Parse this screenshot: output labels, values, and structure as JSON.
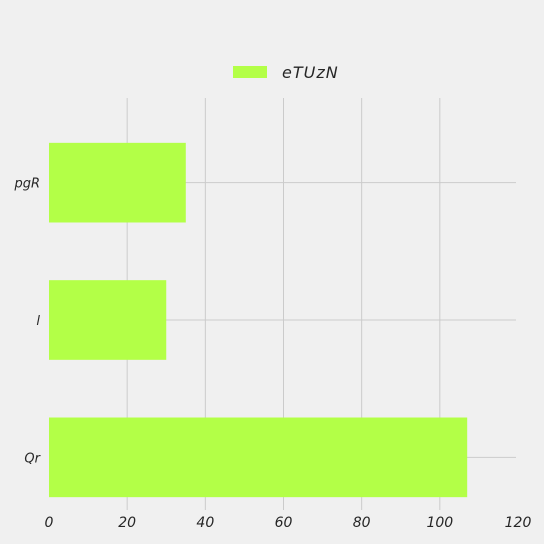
{
  "chart_data": {
    "type": "bar",
    "orientation": "horizontal",
    "categories": [
      "pgR",
      "l",
      "Qr"
    ],
    "series": [
      {
        "name": "eTUzN",
        "values": [
          35,
          30,
          107
        ]
      }
    ],
    "xlim": [
      0,
      120
    ],
    "xticks": [
      0,
      20,
      40,
      60,
      80,
      100,
      120
    ],
    "grid": true,
    "legend_position": "top-center",
    "colors": {
      "bar": "#b3ff47",
      "background": "#f0f0f0",
      "grid": "#cbcbcb",
      "text": "#262626"
    }
  }
}
